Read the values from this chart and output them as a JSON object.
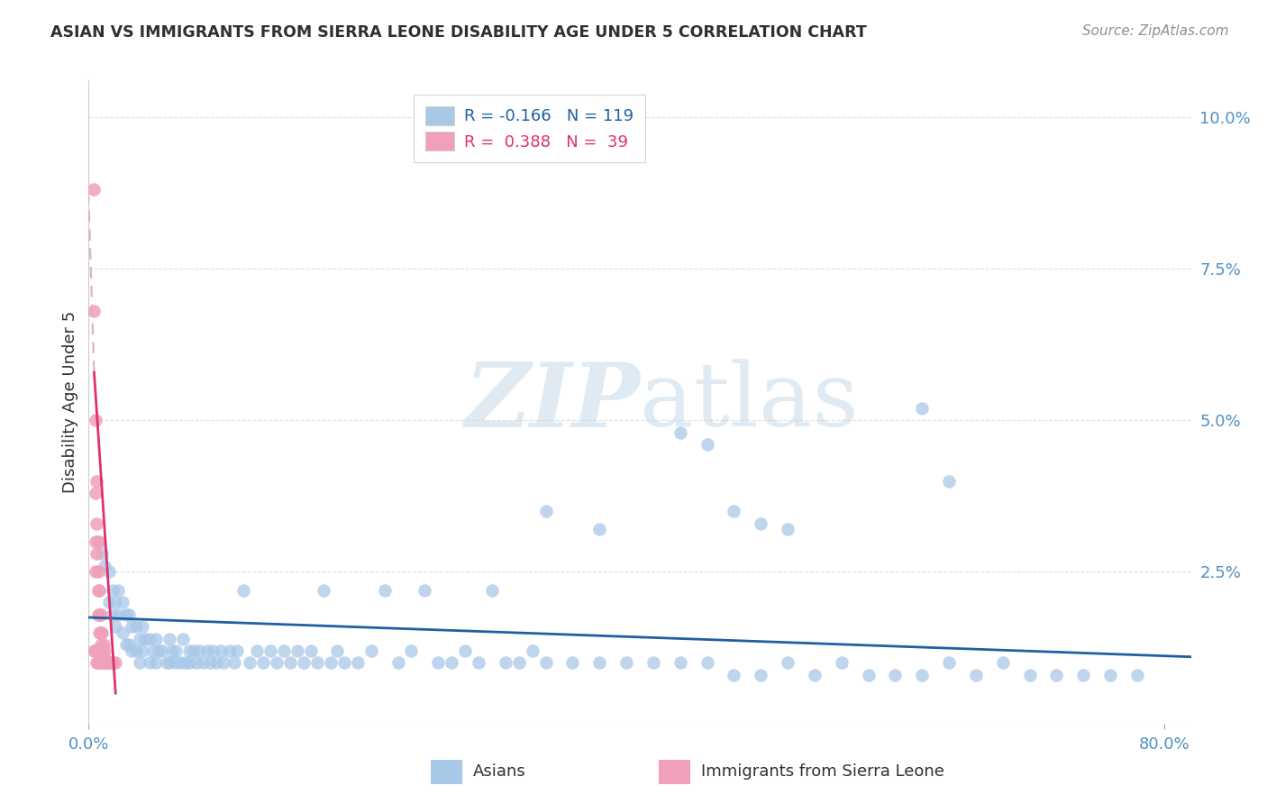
{
  "title": "ASIAN VS IMMIGRANTS FROM SIERRA LEONE DISABILITY AGE UNDER 5 CORRELATION CHART",
  "source": "Source: ZipAtlas.com",
  "ylabel": "Disability Age Under 5",
  "watermark_zip": "ZIP",
  "watermark_atlas": "atlas",
  "xlim": [
    0.0,
    0.82
  ],
  "ylim": [
    0.0,
    0.106
  ],
  "yticks": [
    0.0,
    0.025,
    0.05,
    0.075,
    0.1
  ],
  "ytick_labels": [
    "",
    "2.5%",
    "5.0%",
    "7.5%",
    "10.0%"
  ],
  "xticks": [
    0.0,
    0.8
  ],
  "xtick_labels": [
    "0.0%",
    "80.0%"
  ],
  "blue_color": "#a8c8e8",
  "pink_color": "#f0a0b8",
  "trendline_blue_color": "#2060a0",
  "trendline_pink_color": "#e03070",
  "trendline_pink_dash_color": "#e0b0c0",
  "title_color": "#303030",
  "source_color": "#909090",
  "axis_label_color": "#5090c0",
  "grid_color": "#e0e0e0",
  "blue_scatter_x": [
    0.008,
    0.01,
    0.012,
    0.015,
    0.015,
    0.018,
    0.018,
    0.02,
    0.02,
    0.022,
    0.022,
    0.025,
    0.025,
    0.028,
    0.028,
    0.03,
    0.03,
    0.032,
    0.032,
    0.035,
    0.035,
    0.038,
    0.038,
    0.04,
    0.04,
    0.042,
    0.045,
    0.045,
    0.048,
    0.05,
    0.05,
    0.052,
    0.055,
    0.058,
    0.06,
    0.06,
    0.062,
    0.065,
    0.065,
    0.068,
    0.07,
    0.072,
    0.075,
    0.075,
    0.078,
    0.08,
    0.082,
    0.085,
    0.088,
    0.09,
    0.092,
    0.095,
    0.098,
    0.1,
    0.105,
    0.108,
    0.11,
    0.115,
    0.12,
    0.125,
    0.13,
    0.135,
    0.14,
    0.145,
    0.15,
    0.155,
    0.16,
    0.165,
    0.17,
    0.175,
    0.18,
    0.185,
    0.19,
    0.2,
    0.21,
    0.22,
    0.23,
    0.24,
    0.25,
    0.26,
    0.27,
    0.28,
    0.29,
    0.3,
    0.31,
    0.32,
    0.33,
    0.34,
    0.36,
    0.38,
    0.4,
    0.42,
    0.44,
    0.46,
    0.48,
    0.5,
    0.52,
    0.54,
    0.56,
    0.58,
    0.6,
    0.62,
    0.64,
    0.66,
    0.68,
    0.7,
    0.72,
    0.74,
    0.76,
    0.78,
    0.34,
    0.38,
    0.48,
    0.5,
    0.52,
    0.44,
    0.46,
    0.62,
    0.64
  ],
  "blue_scatter_y": [
    0.03,
    0.028,
    0.026,
    0.025,
    0.02,
    0.022,
    0.018,
    0.02,
    0.016,
    0.022,
    0.018,
    0.02,
    0.015,
    0.018,
    0.013,
    0.018,
    0.013,
    0.016,
    0.012,
    0.016,
    0.012,
    0.014,
    0.01,
    0.016,
    0.012,
    0.014,
    0.014,
    0.01,
    0.012,
    0.014,
    0.01,
    0.012,
    0.012,
    0.01,
    0.014,
    0.01,
    0.012,
    0.012,
    0.01,
    0.01,
    0.014,
    0.01,
    0.012,
    0.01,
    0.012,
    0.01,
    0.012,
    0.01,
    0.012,
    0.01,
    0.012,
    0.01,
    0.012,
    0.01,
    0.012,
    0.01,
    0.012,
    0.022,
    0.01,
    0.012,
    0.01,
    0.012,
    0.01,
    0.012,
    0.01,
    0.012,
    0.01,
    0.012,
    0.01,
    0.022,
    0.01,
    0.012,
    0.01,
    0.01,
    0.012,
    0.022,
    0.01,
    0.012,
    0.022,
    0.01,
    0.01,
    0.012,
    0.01,
    0.022,
    0.01,
    0.01,
    0.012,
    0.01,
    0.01,
    0.01,
    0.01,
    0.01,
    0.01,
    0.01,
    0.008,
    0.008,
    0.01,
    0.008,
    0.01,
    0.008,
    0.008,
    0.008,
    0.01,
    0.008,
    0.01,
    0.008,
    0.008,
    0.008,
    0.008,
    0.008,
    0.035,
    0.032,
    0.035,
    0.033,
    0.032,
    0.048,
    0.046,
    0.052,
    0.04
  ],
  "pink_scatter_x": [
    0.004,
    0.004,
    0.005,
    0.005,
    0.005,
    0.005,
    0.006,
    0.006,
    0.006,
    0.007,
    0.007,
    0.007,
    0.007,
    0.008,
    0.008,
    0.008,
    0.009,
    0.009,
    0.009,
    0.01,
    0.01,
    0.011,
    0.011,
    0.012,
    0.012,
    0.013,
    0.014,
    0.015,
    0.016,
    0.017,
    0.018,
    0.02,
    0.004,
    0.005,
    0.006,
    0.007,
    0.008,
    0.009,
    0.01
  ],
  "pink_scatter_y": [
    0.088,
    0.068,
    0.05,
    0.038,
    0.03,
    0.025,
    0.04,
    0.033,
    0.028,
    0.03,
    0.025,
    0.022,
    0.018,
    0.022,
    0.018,
    0.015,
    0.018,
    0.015,
    0.013,
    0.015,
    0.012,
    0.013,
    0.011,
    0.012,
    0.01,
    0.01,
    0.01,
    0.01,
    0.01,
    0.01,
    0.01,
    0.01,
    0.012,
    0.012,
    0.01,
    0.01,
    0.01,
    0.01,
    0.01
  ],
  "blue_trend_x0": 0.0,
  "blue_trend_x1": 0.82,
  "blue_trend_y0": 0.0175,
  "blue_trend_y1": 0.011,
  "pink_trend_solid_x0": 0.004,
  "pink_trend_solid_x1": 0.02,
  "pink_trend_y_at_x0": 0.058,
  "pink_trend_y_at_x1": 0.005,
  "pink_trend_dash_x0": -0.002,
  "pink_trend_dash_x1": 0.004,
  "pink_trend_y_at_dash_x0": 0.1,
  "pink_trend_y_at_dash_x1": 0.058
}
